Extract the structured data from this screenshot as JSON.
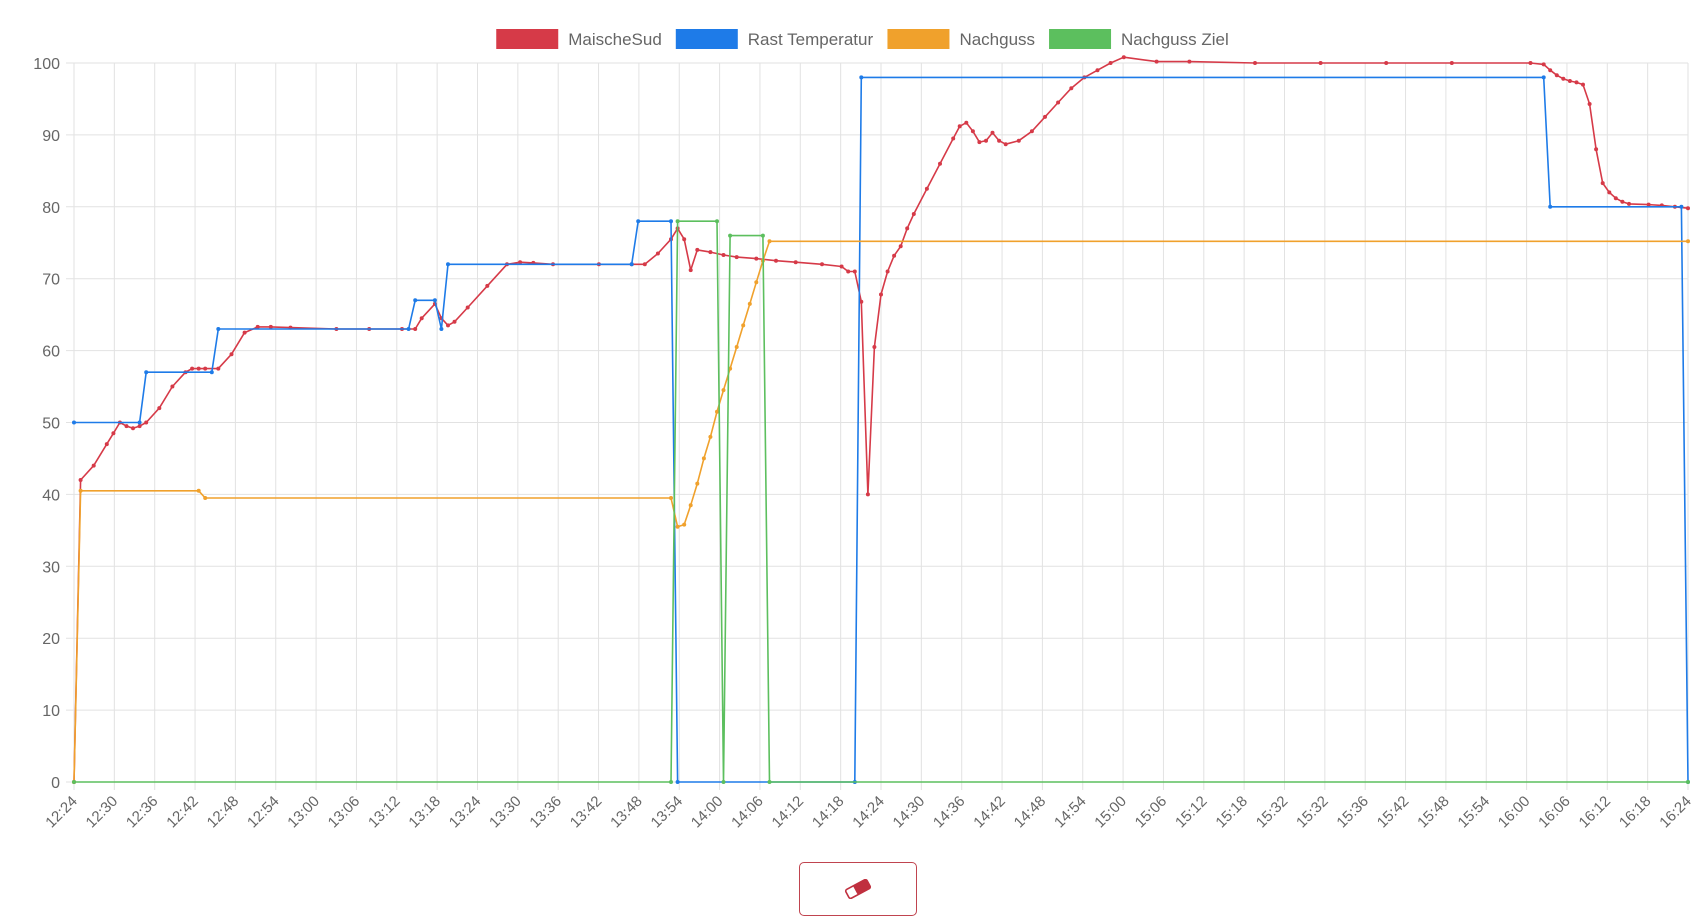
{
  "chart_data": {
    "type": "line",
    "ylim": [
      0,
      100
    ],
    "y_ticks": [
      0,
      10,
      20,
      30,
      40,
      50,
      60,
      70,
      80,
      90,
      100
    ],
    "x_tick_labels": [
      "12:24",
      "12:30",
      "12:36",
      "12:42",
      "12:48",
      "12:54",
      "13:00",
      "13:06",
      "13:12",
      "13:18",
      "13:24",
      "13:30",
      "13:36",
      "13:42",
      "13:48",
      "13:54",
      "14:00",
      "14:06",
      "14:12",
      "14:18",
      "14:24",
      "14:30",
      "14:36",
      "14:42",
      "14:48",
      "14:54",
      "15:00",
      "15:06",
      "15:12",
      "15:18",
      "15:32",
      "15:32",
      "15:36",
      "15:42",
      "15:48",
      "15:54",
      "16:00",
      "16:06",
      "16:12",
      "16:18",
      "16:24"
    ],
    "x_range_minutes": [
      0,
      246
    ],
    "grid": true,
    "legend_position": "top",
    "series": [
      {
        "name": "MaischeSud",
        "color": "#d63a48",
        "points": [
          [
            0,
            0
          ],
          [
            1,
            42
          ],
          [
            3,
            44
          ],
          [
            5,
            47
          ],
          [
            6,
            48.5
          ],
          [
            7,
            50
          ],
          [
            8,
            49.5
          ],
          [
            9,
            49.2
          ],
          [
            10,
            49.5
          ],
          [
            11,
            50
          ],
          [
            13,
            52
          ],
          [
            15,
            55
          ],
          [
            17,
            57
          ],
          [
            18,
            57.5
          ],
          [
            19,
            57.5
          ],
          [
            20,
            57.5
          ],
          [
            22,
            57.5
          ],
          [
            24,
            59.5
          ],
          [
            26,
            62.5
          ],
          [
            28,
            63.3
          ],
          [
            30,
            63.3
          ],
          [
            33,
            63.2
          ],
          [
            40,
            63
          ],
          [
            45,
            63
          ],
          [
            50,
            63
          ],
          [
            52,
            63
          ],
          [
            53,
            64.5
          ],
          [
            55,
            66.5
          ],
          [
            56,
            64.5
          ],
          [
            57,
            63.5
          ],
          [
            58,
            64
          ],
          [
            60,
            66
          ],
          [
            63,
            69
          ],
          [
            66,
            72
          ],
          [
            68,
            72.3
          ],
          [
            70,
            72.2
          ],
          [
            73,
            72
          ],
          [
            80,
            72
          ],
          [
            85,
            72
          ],
          [
            87,
            72
          ],
          [
            89,
            73.5
          ],
          [
            91,
            75.5
          ],
          [
            92,
            77
          ],
          [
            93,
            75.5
          ],
          [
            94,
            71.2
          ],
          [
            95,
            74
          ],
          [
            97,
            73.7
          ],
          [
            99,
            73.3
          ],
          [
            101,
            73
          ],
          [
            104,
            72.8
          ],
          [
            107,
            72.5
          ],
          [
            110,
            72.3
          ],
          [
            114,
            72
          ],
          [
            117,
            71.7
          ],
          [
            118,
            71
          ],
          [
            119,
            71
          ],
          [
            120,
            66.8
          ],
          [
            121,
            40
          ],
          [
            122,
            60.5
          ],
          [
            123,
            67.8
          ],
          [
            124,
            71
          ],
          [
            125,
            73.2
          ],
          [
            126,
            74.5
          ],
          [
            127,
            77
          ],
          [
            128,
            79
          ],
          [
            130,
            82.5
          ],
          [
            132,
            86
          ],
          [
            134,
            89.5
          ],
          [
            135,
            91.2
          ],
          [
            136,
            91.7
          ],
          [
            137,
            90.5
          ],
          [
            138,
            89
          ],
          [
            139,
            89.2
          ],
          [
            140,
            90.3
          ],
          [
            141,
            89.2
          ],
          [
            142,
            88.7
          ],
          [
            144,
            89.2
          ],
          [
            146,
            90.5
          ],
          [
            148,
            92.5
          ],
          [
            150,
            94.5
          ],
          [
            152,
            96.5
          ],
          [
            154,
            98
          ],
          [
            156,
            99
          ],
          [
            158,
            100
          ],
          [
            160,
            100.8
          ],
          [
            165,
            100.2
          ],
          [
            170,
            100.2
          ],
          [
            180,
            100
          ],
          [
            190,
            100
          ],
          [
            200,
            100
          ],
          [
            210,
            100
          ],
          [
            222,
            100
          ],
          [
            224,
            99.8
          ],
          [
            225,
            99
          ],
          [
            226,
            98.3
          ],
          [
            227,
            97.8
          ],
          [
            228,
            97.5
          ],
          [
            229,
            97.3
          ],
          [
            230,
            97
          ],
          [
            231,
            94.3
          ],
          [
            232,
            88
          ],
          [
            233,
            83.3
          ],
          [
            234,
            82
          ],
          [
            235,
            81.2
          ],
          [
            236,
            80.7
          ],
          [
            237,
            80.4
          ],
          [
            240,
            80.3
          ],
          [
            242,
            80.2
          ],
          [
            244,
            80
          ],
          [
            246,
            79.8
          ]
        ]
      },
      {
        "name": "Rast Temperatur",
        "color": "#1e7be8",
        "points": [
          [
            0,
            50
          ],
          [
            10,
            50
          ],
          [
            11,
            57
          ],
          [
            21,
            57
          ],
          [
            22,
            63
          ],
          [
            51,
            63
          ],
          [
            52,
            67
          ],
          [
            55,
            67
          ],
          [
            56,
            63
          ],
          [
            57,
            72
          ],
          [
            85,
            72
          ],
          [
            86,
            78
          ],
          [
            91,
            78
          ],
          [
            92,
            0
          ],
          [
            119,
            0
          ],
          [
            120,
            98
          ],
          [
            224,
            98
          ],
          [
            225,
            80
          ],
          [
            245,
            80
          ],
          [
            246,
            0
          ]
        ]
      },
      {
        "name": "Nachguss",
        "color": "#f0a12c",
        "points": [
          [
            0,
            0
          ],
          [
            1,
            40.5
          ],
          [
            19,
            40.5
          ],
          [
            20,
            39.5
          ],
          [
            91,
            39.5
          ],
          [
            92,
            35.5
          ],
          [
            93,
            35.8
          ],
          [
            94,
            38.5
          ],
          [
            95,
            41.5
          ],
          [
            96,
            45
          ],
          [
            97,
            48
          ],
          [
            98,
            51.5
          ],
          [
            99,
            54.5
          ],
          [
            100,
            57.5
          ],
          [
            101,
            60.5
          ],
          [
            102,
            63.5
          ],
          [
            103,
            66.5
          ],
          [
            104,
            69.5
          ],
          [
            105,
            72.5
          ],
          [
            106,
            75.2
          ],
          [
            246,
            75.2
          ]
        ]
      },
      {
        "name": "Nachguss Ziel",
        "color": "#5cbf5e",
        "points": [
          [
            0,
            0
          ],
          [
            91,
            0
          ],
          [
            92,
            78
          ],
          [
            98,
            78
          ],
          [
            99,
            0
          ],
          [
            100,
            76
          ],
          [
            105,
            76
          ],
          [
            106,
            0
          ],
          [
            246,
            0
          ]
        ]
      }
    ]
  },
  "clear_button": {
    "icon": "eraser-icon"
  }
}
